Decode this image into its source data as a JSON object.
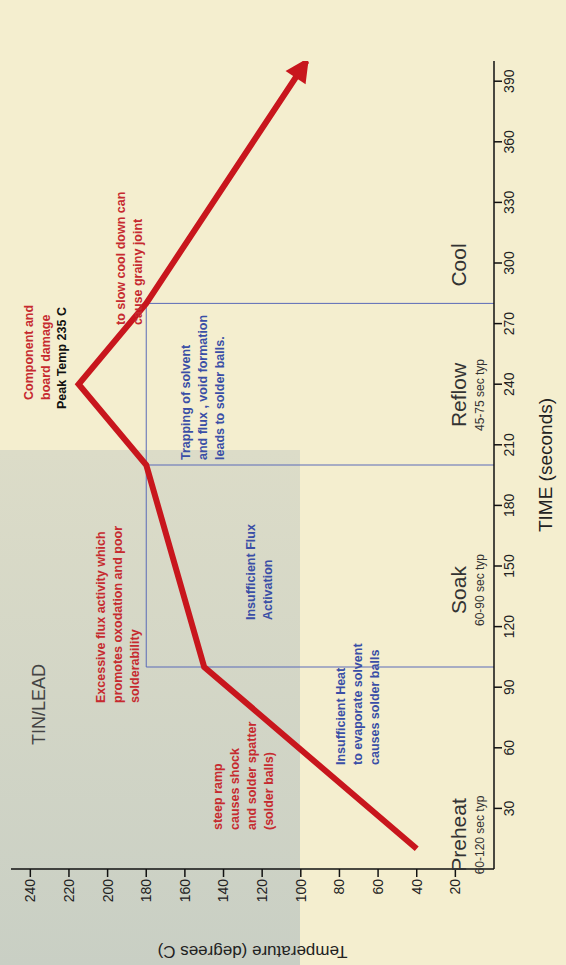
{
  "chart_data": {
    "type": "line",
    "title": "TIN/LEAD",
    "x_label": "TIME (seconds)",
    "y_label": "Temperature (degrees C)",
    "x": [
      10,
      100,
      200,
      240,
      280,
      400
    ],
    "values": [
      40,
      150,
      180,
      215,
      180,
      97
    ],
    "color": "#c8161d",
    "marker": "arrow",
    "xlim": [
      0,
      400
    ],
    "xticks": [
      30,
      60,
      90,
      120,
      150,
      180,
      210,
      240,
      270,
      300,
      330,
      360,
      390
    ],
    "ylim": [
      0,
      250
    ],
    "yticks": [
      20,
      40,
      60,
      80,
      100,
      120,
      140,
      160,
      180,
      200,
      220,
      240
    ],
    "grid": false,
    "phases": [
      {
        "name": "Preheat",
        "typical": "60-120 sec typ"
      },
      {
        "name": "Soak",
        "typical": "60-90 sec typ"
      },
      {
        "name": "Reflow",
        "typical": "45-75 sec typ"
      },
      {
        "name": "Cool"
      }
    ],
    "phase_boundaries": [
      100,
      200,
      280
    ],
    "phase_level": 180,
    "annotations": [
      {
        "text": [
          "steep ramp",
          "causes shock",
          "and solder spatter",
          "(solder balls)"
        ],
        "color": "#c62a2f"
      },
      {
        "text": [
          "Insufficient Heat",
          "to evaporate solvent",
          "causes solder balls"
        ],
        "color": "#3a4ea6"
      },
      {
        "text": [
          "Excessive flux activity which",
          "promotes oxodation and poor",
          "solderability"
        ],
        "color": "#c62a2f"
      },
      {
        "text": [
          "Insufficient Flux",
          "Activation"
        ],
        "color": "#3a4ea6"
      },
      {
        "text": [
          "Component and",
          "board damage"
        ],
        "color": "#c62a2f"
      },
      {
        "text": [
          "Peak Temp 235 C"
        ],
        "color": "#111111"
      },
      {
        "text": [
          "Trapping of solvent",
          "and flux , void formation",
          "leads to solder balls."
        ],
        "color": "#3a4ea6"
      },
      {
        "text": [
          "to slow cool down can",
          "cause grainy joint"
        ],
        "color": "#c62a2f"
      }
    ]
  }
}
